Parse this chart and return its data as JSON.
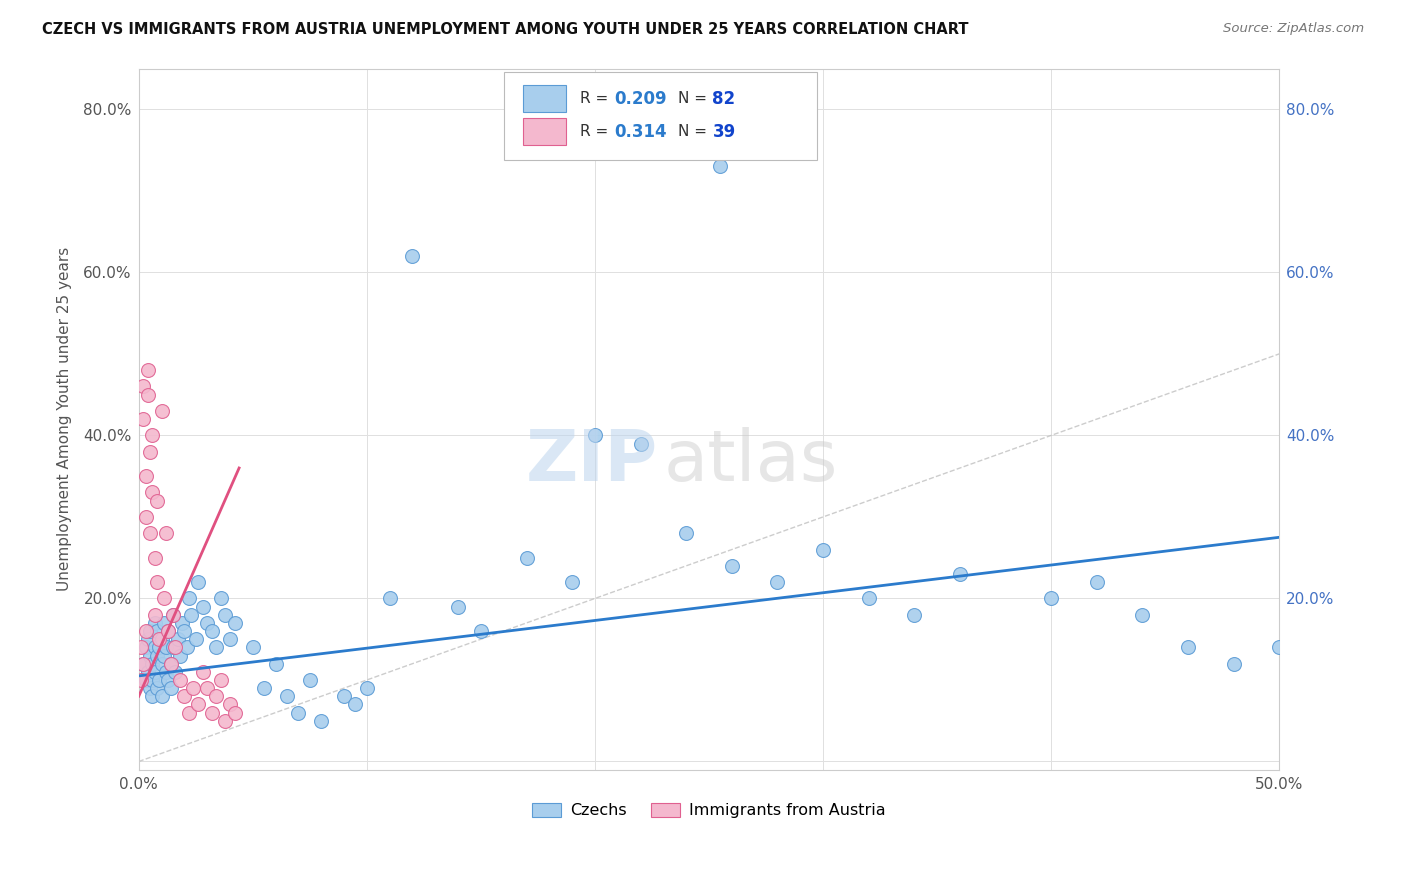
{
  "title": "CZECH VS IMMIGRANTS FROM AUSTRIA UNEMPLOYMENT AMONG YOUTH UNDER 25 YEARS CORRELATION CHART",
  "source": "Source: ZipAtlas.com",
  "ylabel": "Unemployment Among Youth under 25 years",
  "xlim": [
    0,
    0.5
  ],
  "ylim": [
    -0.01,
    0.85
  ],
  "xticks": [
    0.0,
    0.1,
    0.2,
    0.3,
    0.4,
    0.5
  ],
  "yticks": [
    0.0,
    0.2,
    0.4,
    0.6,
    0.8
  ],
  "xticklabels": [
    "0.0%",
    "",
    "",
    "",
    "",
    "50.0%"
  ],
  "yticklabels": [
    "",
    "20.0%",
    "40.0%",
    "60.0%",
    "80.0%"
  ],
  "right_yticklabels": [
    "20.0%",
    "40.0%",
    "60.0%",
    "80.0%"
  ],
  "czechs_color": "#A8CEED",
  "austria_color": "#F4B8CE",
  "czechs_edge": "#5B9BD5",
  "austria_edge": "#E06090",
  "trend_blue": "#2B7BCC",
  "trend_pink": "#E05080",
  "R_czech": 0.209,
  "N_czech": 82,
  "R_austria": 0.314,
  "N_austria": 39,
  "watermark_zip": "ZIP",
  "watermark_atlas": "atlas",
  "background_color": "#FFFFFF",
  "grid_color": "#E0E0E0"
}
